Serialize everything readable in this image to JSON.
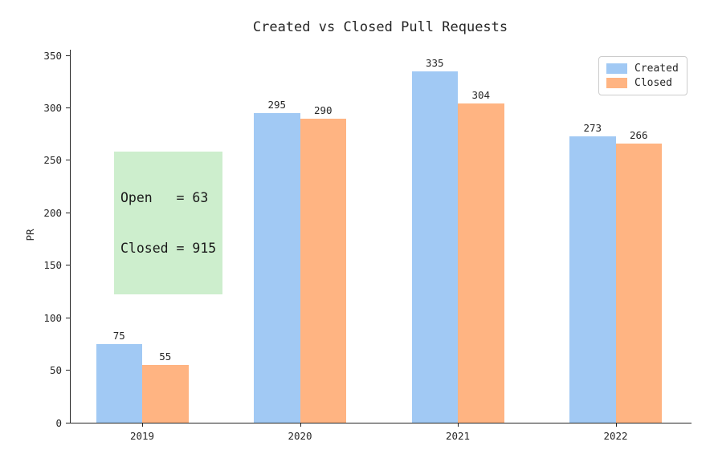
{
  "chart_data": {
    "type": "bar",
    "title": "Created vs Closed Pull Requests",
    "xlabel": "",
    "ylabel": "PR",
    "categories": [
      "2019",
      "2020",
      "2021",
      "2022"
    ],
    "series": [
      {
        "name": "Created",
        "color": "#a1c9f4",
        "values": [
          75,
          295,
          335,
          273
        ]
      },
      {
        "name": "Closed",
        "color": "#ffb482",
        "values": [
          55,
          290,
          304,
          266
        ]
      }
    ],
    "ylim": [
      0,
      350
    ],
    "yticks": [
      0,
      50,
      100,
      150,
      200,
      250,
      300,
      350
    ],
    "grid": false,
    "bar_labels": true,
    "legend_position": "upper right"
  },
  "annotation": {
    "lines": [
      "Open   = 63",
      "Closed = 915"
    ],
    "bg_color": "#cdeecd"
  }
}
